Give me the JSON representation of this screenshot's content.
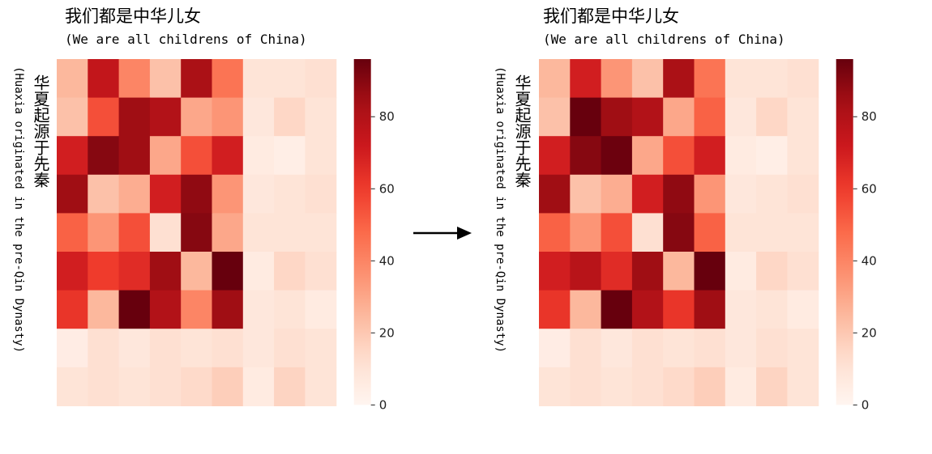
{
  "chart_data": [
    {
      "type": "heatmap",
      "title": "我们都是中华儿女",
      "subtitle": "(We are all childrens of China)",
      "ylabel": "华夏起源于先秦",
      "ylabel_sub": "(Huaxia originated in the pre-Qin Dynasty)",
      "colormap": "Reds",
      "vmin": 0,
      "vmax": 96,
      "colorbar_ticks": [
        "0",
        "20",
        "40",
        "60",
        "80"
      ],
      "rows": 9,
      "cols": 9,
      "values": [
        [
          25,
          75,
          40,
          22,
          82,
          45,
          10,
          10,
          12
        ],
        [
          22,
          55,
          85,
          80,
          30,
          35,
          8,
          15,
          10
        ],
        [
          70,
          90,
          85,
          30,
          55,
          70,
          6,
          4,
          10
        ],
        [
          85,
          22,
          28,
          70,
          88,
          35,
          8,
          10,
          12
        ],
        [
          50,
          35,
          55,
          12,
          90,
          30,
          10,
          10,
          10
        ],
        [
          70,
          60,
          65,
          85,
          25,
          96,
          6,
          15,
          12
        ],
        [
          62,
          25,
          98,
          80,
          40,
          85,
          8,
          10,
          6
        ],
        [
          5,
          12,
          8,
          12,
          10,
          12,
          8,
          12,
          10
        ],
        [
          10,
          12,
          10,
          12,
          14,
          18,
          6,
          16,
          10
        ]
      ]
    },
    {
      "type": "heatmap",
      "title": "我们都是中华儿女",
      "subtitle": "(We are all childrens of China)",
      "ylabel": "华夏起源于先秦",
      "ylabel_sub": "(Huaxia originated in the pre-Qin Dynasty)",
      "colormap": "Reds",
      "vmin": 0,
      "vmax": 96,
      "colorbar_ticks": [
        "0",
        "20",
        "40",
        "60",
        "80"
      ],
      "rows": 9,
      "cols": 9,
      "values": [
        [
          25,
          70,
          35,
          22,
          82,
          45,
          10,
          10,
          12
        ],
        [
          22,
          98,
          85,
          80,
          30,
          50,
          8,
          15,
          10
        ],
        [
          70,
          90,
          95,
          30,
          55,
          70,
          6,
          4,
          10
        ],
        [
          85,
          22,
          28,
          70,
          88,
          35,
          8,
          10,
          12
        ],
        [
          50,
          35,
          55,
          12,
          90,
          50,
          10,
          10,
          10
        ],
        [
          70,
          78,
          65,
          85,
          25,
          96,
          6,
          15,
          12
        ],
        [
          62,
          25,
          98,
          80,
          62,
          85,
          8,
          10,
          6
        ],
        [
          5,
          12,
          8,
          12,
          10,
          12,
          8,
          12,
          10
        ],
        [
          10,
          12,
          10,
          12,
          14,
          18,
          6,
          16,
          10
        ]
      ]
    }
  ]
}
